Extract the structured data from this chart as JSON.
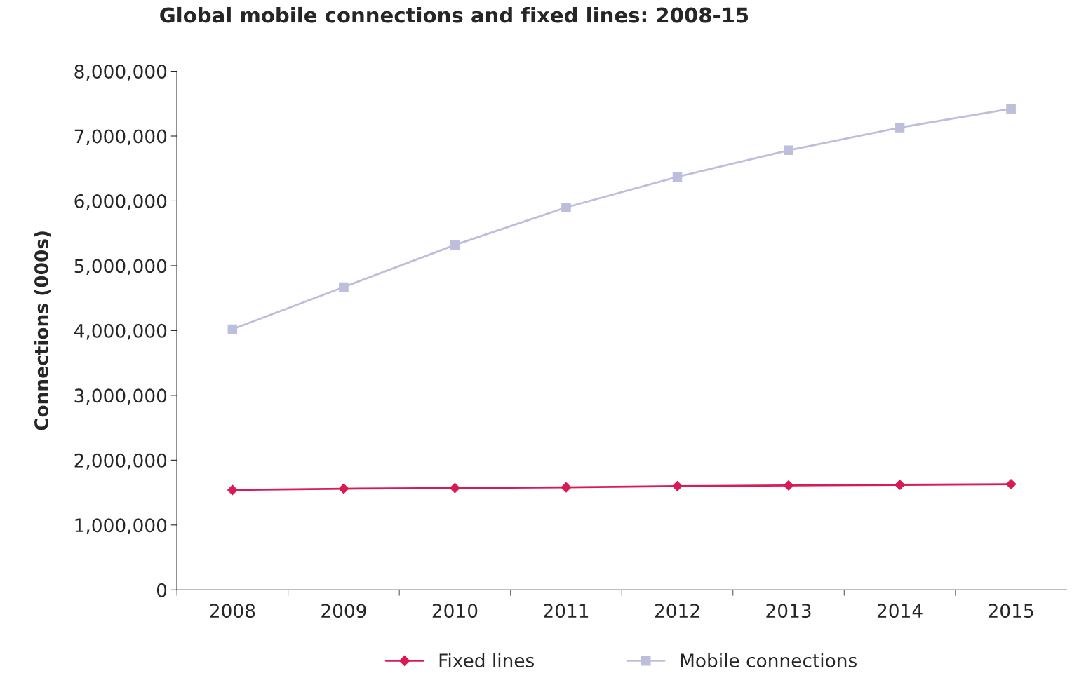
{
  "chart_data": {
    "type": "line",
    "title": "Global mobile connections and fixed lines: 2008-15",
    "ylabel": "Connections (000s)",
    "categories": [
      "2008",
      "2009",
      "2010",
      "2011",
      "2012",
      "2013",
      "2014",
      "2015"
    ],
    "series": [
      {
        "name": "Fixed lines",
        "color": "#d81b55",
        "marker": "diamond",
        "values": [
          1540000,
          1560000,
          1570000,
          1580000,
          1600000,
          1610000,
          1620000,
          1630000
        ]
      },
      {
        "name": "Mobile connections",
        "color": "#bdbddc",
        "marker": "square",
        "values": [
          4020000,
          4670000,
          5320000,
          5900000,
          6370000,
          6780000,
          7130000,
          7420000
        ]
      }
    ],
    "ylim": [
      0,
      8000000
    ],
    "yticks": [
      {
        "value": 0,
        "label": "0"
      },
      {
        "value": 1000000,
        "label": "1,000,000"
      },
      {
        "value": 2000000,
        "label": "2,000,000"
      },
      {
        "value": 3000000,
        "label": "3,000,000"
      },
      {
        "value": 4000000,
        "label": "4,000,000"
      },
      {
        "value": 5000000,
        "label": "5,000,000"
      },
      {
        "value": 6000000,
        "label": "6,000,000"
      },
      {
        "value": 7000000,
        "label": "7,000,000"
      },
      {
        "value": 8000000,
        "label": "8,000,000"
      }
    ],
    "legend": "bottom",
    "grid": false,
    "line_style": "solid"
  }
}
